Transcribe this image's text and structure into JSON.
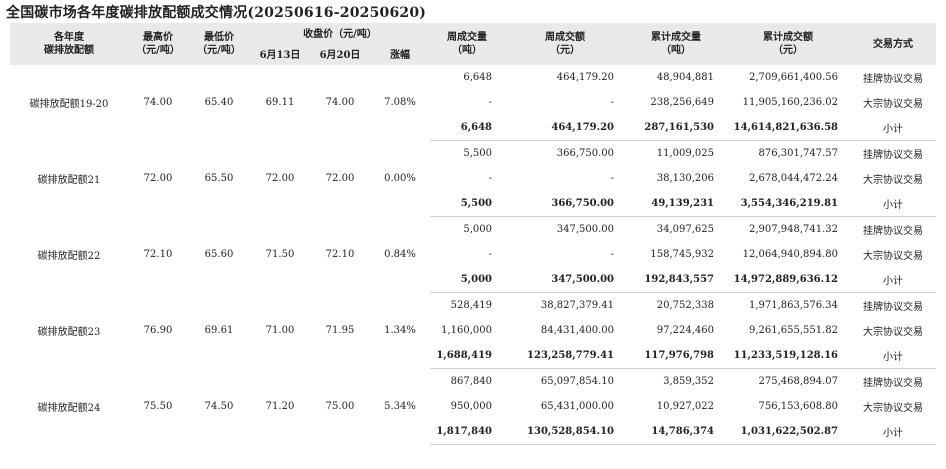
{
  "title": "全国碳市场各年度碳排放配额成交情况(20250616-20250620)",
  "headers": {
    "vintage_line1": "各年度",
    "vintage_line2": "碳排放配额",
    "high_line1": "最高价",
    "high_line2": "（元/吨）",
    "low_line1": "最低价",
    "low_line2": "（元/吨）",
    "close_group": "收盘价（元/吨）",
    "close_d1": "6月13日",
    "close_d2": "6月20日",
    "change": "涨幅",
    "wvol_line1": "周成交量",
    "wvol_line2": "（吨）",
    "wamt_line1": "周成交额",
    "wamt_line2": "（元）",
    "cvol_line1": "累计成交量",
    "cvol_line2": "（吨）",
    "camt_line1": "累计成交额",
    "camt_line2": "（元）",
    "method": "交易方式"
  },
  "groups": [
    {
      "name": "碳排放配额19-20",
      "high": "74.00",
      "low": "65.40",
      "close_d1": "69.11",
      "close_d2": "74.00",
      "change": "7.08%",
      "rows": [
        {
          "wvol": "6,648",
          "wamt": "464,179.20",
          "cvol": "48,904,881",
          "camt": "2,709,661,400.56",
          "method": "挂牌协议交易"
        },
        {
          "wvol": "-",
          "wamt": "-",
          "cvol": "238,256,649",
          "camt": "11,905,160,236.02",
          "method": "大宗协议交易"
        },
        {
          "wvol": "6,648",
          "wamt": "464,179.20",
          "cvol": "287,161,530",
          "camt": "14,614,821,636.58",
          "method": "小计"
        }
      ]
    },
    {
      "name": "碳排放配额21",
      "high": "72.00",
      "low": "65.50",
      "close_d1": "72.00",
      "close_d2": "72.00",
      "change": "0.00%",
      "rows": [
        {
          "wvol": "5,500",
          "wamt": "366,750.00",
          "cvol": "11,009,025",
          "camt": "876,301,747.57",
          "method": "挂牌协议交易"
        },
        {
          "wvol": "-",
          "wamt": "-",
          "cvol": "38,130,206",
          "camt": "2,678,044,472.24",
          "method": "大宗协议交易"
        },
        {
          "wvol": "5,500",
          "wamt": "366,750.00",
          "cvol": "49,139,231",
          "camt": "3,554,346,219.81",
          "method": "小计"
        }
      ]
    },
    {
      "name": "碳排放配额22",
      "high": "72.10",
      "low": "65.60",
      "close_d1": "71.50",
      "close_d2": "72.10",
      "change": "0.84%",
      "rows": [
        {
          "wvol": "5,000",
          "wamt": "347,500.00",
          "cvol": "34,097,625",
          "camt": "2,907,948,741.32",
          "method": "挂牌协议交易"
        },
        {
          "wvol": "-",
          "wamt": "-",
          "cvol": "158,745,932",
          "camt": "12,064,940,894.80",
          "method": "大宗协议交易"
        },
        {
          "wvol": "5,000",
          "wamt": "347,500.00",
          "cvol": "192,843,557",
          "camt": "14,972,889,636.12",
          "method": "小计"
        }
      ]
    },
    {
      "name": "碳排放配额23",
      "high": "76.90",
      "low": "69.61",
      "close_d1": "71.00",
      "close_d2": "71.95",
      "change": "1.34%",
      "rows": [
        {
          "wvol": "528,419",
          "wamt": "38,827,379.41",
          "cvol": "20,752,338",
          "camt": "1,971,863,576.34",
          "method": "挂牌协议交易"
        },
        {
          "wvol": "1,160,000",
          "wamt": "84,431,400.00",
          "cvol": "97,224,460",
          "camt": "9,261,655,551.82",
          "method": "大宗协议交易"
        },
        {
          "wvol": "1,688,419",
          "wamt": "123,258,779.41",
          "cvol": "117,976,798",
          "camt": "11,233,519,128.16",
          "method": "小计"
        }
      ]
    },
    {
      "name": "碳排放配额24",
      "high": "75.50",
      "low": "74.50",
      "close_d1": "71.20",
      "close_d2": "75.00",
      "change": "5.34%",
      "rows": [
        {
          "wvol": "867,840",
          "wamt": "65,097,854.10",
          "cvol": "3,859,352",
          "camt": "275,468,894.07",
          "method": "挂牌协议交易"
        },
        {
          "wvol": "950,000",
          "wamt": "65,431,000.00",
          "cvol": "10,927,022",
          "camt": "756,153,608.80",
          "method": "大宗协议交易"
        },
        {
          "wvol": "1,817,840",
          "wamt": "130,528,854.10",
          "cvol": "14,786,374",
          "camt": "1,031,622,502.87",
          "method": "小计"
        }
      ]
    }
  ]
}
